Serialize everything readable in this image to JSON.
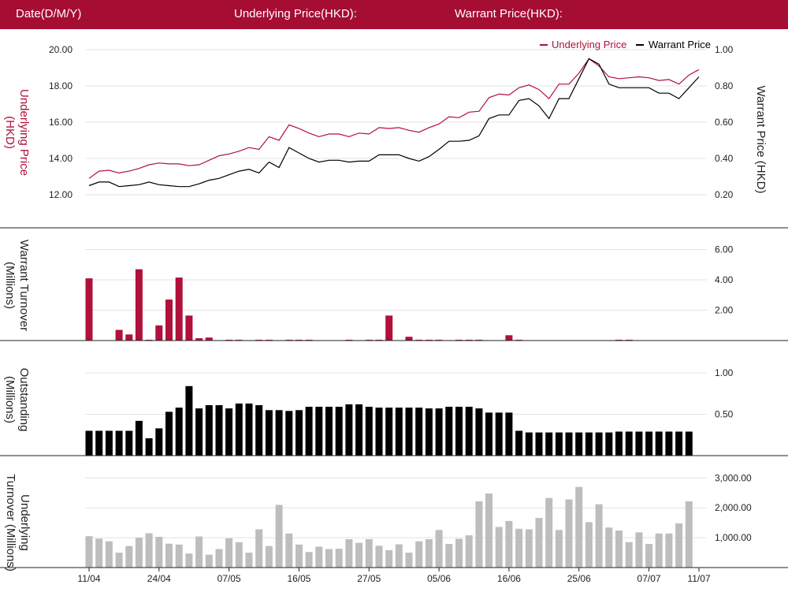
{
  "header": {
    "date_label": "Date(D/M/Y)",
    "underlying_label": "Underlying Price(HKD):",
    "warrant_label": "Warrant Price(HKD):"
  },
  "colors": {
    "brand": "#a50d33",
    "underlying": "#b0103a",
    "warrant": "#000000",
    "outstanding": "#000000",
    "underlying_turnover": "#bdbdbd",
    "grid": "#e3e3e3"
  },
  "x_tick_labels": [
    "11/04",
    "24/04",
    "07/05",
    "16/05",
    "27/05",
    "05/06",
    "16/06",
    "25/06",
    "07/07",
    "11/07"
  ],
  "chart_data": [
    {
      "type": "line",
      "legend": [
        "Underlying Price",
        "Warrant Price"
      ],
      "legend_position": "top-right",
      "ylabel_left": "Underlying Price (HKD)",
      "ylabel_right": "Warrant  Price (HKD)",
      "y_left_ticks": [
        "12.00",
        "14.00",
        "16.00",
        "18.00",
        "20.00"
      ],
      "y_right_ticks": [
        "0.20",
        "0.40",
        "0.60",
        "0.80",
        "1.00"
      ],
      "ylim_left": [
        11.0,
        20.0
      ],
      "ylim_right": [
        0.1,
        1.0
      ],
      "grid": true,
      "series": [
        {
          "name": "Underlying Price",
          "axis": "left",
          "values": [
            12.9,
            13.3,
            13.35,
            13.2,
            13.3,
            13.45,
            13.65,
            13.75,
            13.7,
            13.7,
            13.6,
            13.65,
            13.9,
            14.15,
            14.25,
            14.4,
            14.6,
            14.5,
            15.2,
            15.0,
            15.85,
            15.65,
            15.4,
            15.2,
            15.35,
            15.35,
            15.2,
            15.4,
            15.35,
            15.7,
            15.65,
            15.7,
            15.55,
            15.45,
            15.7,
            15.9,
            16.3,
            16.25,
            16.55,
            16.6,
            17.35,
            17.55,
            17.5,
            17.9,
            18.05,
            17.8,
            17.3,
            18.1,
            18.1,
            18.7,
            19.5,
            19.1,
            18.5,
            18.4,
            18.45,
            18.5,
            18.45,
            18.3,
            18.35,
            18.1,
            18.6,
            18.9
          ]
        },
        {
          "name": "Warrant Price",
          "axis": "right",
          "values": [
            0.25,
            0.27,
            0.27,
            0.245,
            0.25,
            0.255,
            0.27,
            0.255,
            0.25,
            0.245,
            0.245,
            0.26,
            0.28,
            0.29,
            0.31,
            0.33,
            0.34,
            0.32,
            0.38,
            0.35,
            0.46,
            0.43,
            0.4,
            0.38,
            0.39,
            0.39,
            0.38,
            0.385,
            0.385,
            0.42,
            0.42,
            0.42,
            0.4,
            0.385,
            0.41,
            0.45,
            0.495,
            0.495,
            0.5,
            0.525,
            0.62,
            0.64,
            0.64,
            0.72,
            0.73,
            0.69,
            0.62,
            0.73,
            0.73,
            0.84,
            0.95,
            0.92,
            0.81,
            0.79,
            0.79,
            0.79,
            0.79,
            0.76,
            0.76,
            0.73,
            0.79,
            0.85
          ]
        }
      ]
    },
    {
      "type": "bar",
      "name": "Warrant Turnover",
      "ylabel": "Warrant  Turnover (Millions)",
      "y_ticks": [
        "2.00",
        "4.00",
        "6.00"
      ],
      "ylim": [
        0,
        6.6
      ],
      "grid": true,
      "values": [
        4.1,
        0,
        0,
        0.7,
        0.4,
        4.7,
        0.05,
        1.0,
        2.7,
        4.15,
        1.65,
        0.15,
        0.2,
        0,
        0.05,
        0.05,
        0,
        0.05,
        0.05,
        0,
        0.05,
        0.05,
        0.05,
        0,
        0,
        0,
        0.05,
        0,
        0.05,
        0.05,
        1.65,
        0,
        0.25,
        0.05,
        0.05,
        0.05,
        0,
        0.05,
        0.05,
        0.05,
        0,
        0,
        0.35,
        0.05,
        0,
        0,
        0,
        0,
        0,
        0,
        0,
        0,
        0,
        0.05,
        0.05,
        0,
        0,
        0,
        0,
        0,
        0,
        0
      ]
    },
    {
      "type": "bar",
      "name": "Outstanding",
      "ylabel": "Outstanding (Millions)",
      "y_ticks": [
        "0.50",
        "1.00"
      ],
      "ylim": [
        0,
        1.2
      ],
      "grid": true,
      "values": [
        0.3,
        0.3,
        0.3,
        0.3,
        0.3,
        0.42,
        0.21,
        0.33,
        0.53,
        0.58,
        0.84,
        0.57,
        0.61,
        0.61,
        0.57,
        0.63,
        0.63,
        0.61,
        0.55,
        0.55,
        0.54,
        0.55,
        0.59,
        0.59,
        0.59,
        0.59,
        0.62,
        0.62,
        0.59,
        0.58,
        0.58,
        0.58,
        0.58,
        0.58,
        0.57,
        0.57,
        0.59,
        0.59,
        0.59,
        0.57,
        0.52,
        0.52,
        0.52,
        0.3,
        0.28,
        0.28,
        0.28,
        0.28,
        0.28,
        0.28,
        0.28,
        0.28,
        0.28,
        0.29,
        0.29,
        0.29,
        0.29,
        0.29,
        0.29,
        0.29,
        0.29,
        0
      ]
    },
    {
      "type": "bar",
      "name": "Underlying Turnover",
      "ylabel": "Underlying Turnover (Millions)",
      "y_ticks": [
        "1,000.00",
        "2,000.00",
        "3,000.00"
      ],
      "ylim": [
        0,
        3300
      ],
      "grid": true,
      "values": [
        1050,
        970,
        880,
        500,
        720,
        1000,
        1150,
        1030,
        800,
        770,
        470,
        1040,
        430,
        620,
        980,
        850,
        500,
        1280,
        720,
        2100,
        1140,
        770,
        520,
        700,
        620,
        630,
        950,
        830,
        950,
        730,
        580,
        780,
        500,
        880,
        950,
        1260,
        790,
        960,
        1080,
        2220,
        2480,
        1360,
        1560,
        1300,
        1280,
        1660,
        2330,
        1260,
        2280,
        2700,
        1520,
        2120,
        1340,
        1240,
        850,
        1180,
        790,
        1140,
        1140,
        1480,
        2220,
        0
      ]
    }
  ]
}
